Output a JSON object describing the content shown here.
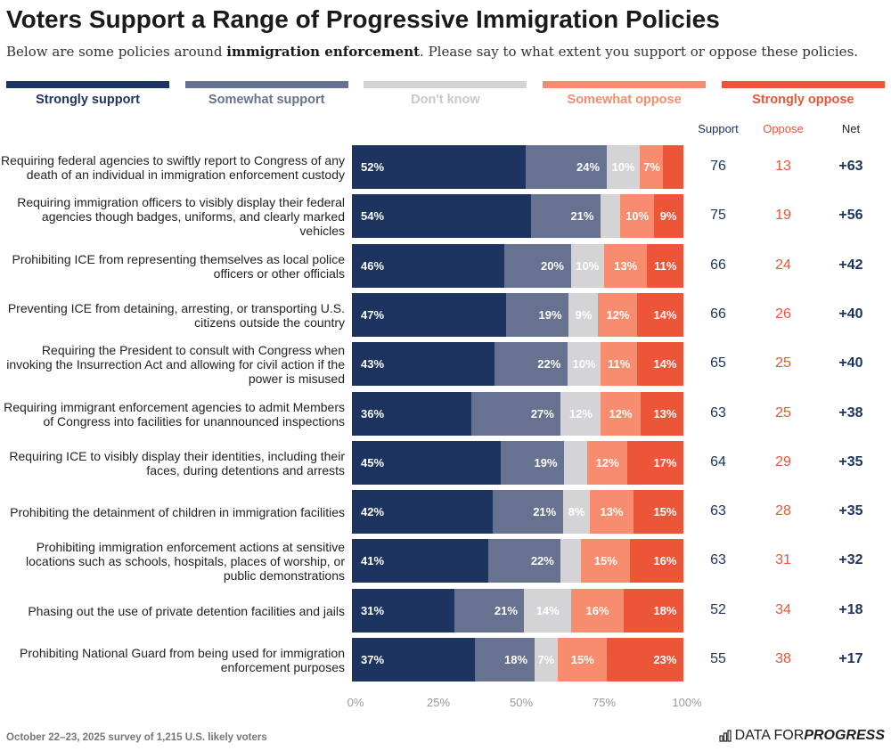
{
  "title": "Voters Support a Range of Progressive Immigration Policies",
  "subtitle": {
    "pre": "Below are some policies around ",
    "bold": "immigration enforcement",
    "post": ". Please say to what extent you support or oppose these policies."
  },
  "footer": "October 22–23, 2025 survey of 1,215 U.S. likely voters",
  "logo": {
    "text1": "DATA FOR ",
    "text2": "PROGRESS"
  },
  "chart_data": {
    "type": "bar",
    "orientation": "horizontal-stacked-100",
    "legend": "top",
    "series_names": [
      "Strongly support",
      "Somewhat support",
      "Don't know",
      "Somewhat oppose",
      "Strongly oppose"
    ],
    "colors": [
      "#1d3461",
      "#677291",
      "#d4d4d6",
      "#f78c6e",
      "#ec5538"
    ],
    "column_headers": [
      "Support",
      "Oppose",
      "Net"
    ],
    "xlim": [
      0,
      100
    ],
    "x_ticks": [
      "0%",
      "25%",
      "50%",
      "75%",
      "100%"
    ],
    "rows": [
      {
        "label": "Requiring federal agencies to swiftly report to Congress of any death of an individual in immigration enforcement custody",
        "values": [
          52,
          24,
          10,
          7,
          6
        ],
        "labels": [
          "52%",
          "24%",
          "10%",
          "7%",
          ""
        ],
        "support": "76",
        "oppose": "13",
        "net": "+63"
      },
      {
        "label": "Requiring immigration officers to visibly display their federal agencies though badges, uniforms, and clearly marked vehicles",
        "values": [
          54,
          21,
          6,
          10,
          9
        ],
        "labels": [
          "54%",
          "21%",
          "",
          "10%",
          "9%"
        ],
        "support": "75",
        "oppose": "19",
        "net": "+56"
      },
      {
        "label": "Prohibiting ICE from representing themselves as local police officers or other officials",
        "values": [
          46,
          20,
          10,
          13,
          11
        ],
        "labels": [
          "46%",
          "20%",
          "10%",
          "13%",
          "11%"
        ],
        "support": "66",
        "oppose": "24",
        "net": "+42"
      },
      {
        "label": "Preventing ICE from detaining, arresting, or transporting U.S. citizens outside the country",
        "values": [
          47,
          19,
          9,
          12,
          14
        ],
        "labels": [
          "47%",
          "19%",
          "9%",
          "12%",
          "14%"
        ],
        "support": "66",
        "oppose": "26",
        "net": "+40"
      },
      {
        "label": "Requiring the President to consult with Congress when invoking the Insurrection Act and allowing for civil action if the power is misused",
        "values": [
          43,
          22,
          10,
          11,
          14
        ],
        "labels": [
          "43%",
          "22%",
          "10%",
          "11%",
          "14%"
        ],
        "support": "65",
        "oppose": "25",
        "net": "+40"
      },
      {
        "label": "Requiring immigrant enforcement agencies to admit Members of Congress into facilities for unannounced inspections",
        "values": [
          36,
          27,
          12,
          12,
          13
        ],
        "labels": [
          "36%",
          "27%",
          "12%",
          "12%",
          "13%"
        ],
        "support": "63",
        "oppose": "25",
        "net": "+38"
      },
      {
        "label": "Requiring ICE to visibly display their identities, including their faces, during detentions and arrests",
        "values": [
          45,
          19,
          7,
          12,
          17
        ],
        "labels": [
          "45%",
          "19%",
          "",
          "12%",
          "17%"
        ],
        "support": "64",
        "oppose": "29",
        "net": "+35"
      },
      {
        "label": "Prohibiting the detainment of children in immigration facilities",
        "values": [
          42,
          21,
          8,
          13,
          15
        ],
        "labels": [
          "42%",
          "21%",
          "8%",
          "13%",
          "15%"
        ],
        "support": "63",
        "oppose": "28",
        "net": "+35"
      },
      {
        "label": "Prohibiting immigration enforcement actions at sensitive locations such as schools, hospitals, places of worship, or public demonstrations",
        "values": [
          41,
          22,
          6,
          15,
          16
        ],
        "labels": [
          "41%",
          "22%",
          "",
          "15%",
          "16%"
        ],
        "support": "63",
        "oppose": "31",
        "net": "+32"
      },
      {
        "label": "Phasing out the use of private detention facilities and jails",
        "values": [
          31,
          21,
          14,
          16,
          18
        ],
        "labels": [
          "31%",
          "21%",
          "14%",
          "16%",
          "18%"
        ],
        "support": "52",
        "oppose": "34",
        "net": "+18"
      },
      {
        "label": "Prohibiting National Guard from being used for immigration enforcement purposes",
        "values": [
          37,
          18,
          7,
          15,
          23
        ],
        "labels": [
          "37%",
          "18%",
          "7%",
          "15%",
          "23%"
        ],
        "support": "55",
        "oppose": "38",
        "net": "+17"
      }
    ]
  }
}
